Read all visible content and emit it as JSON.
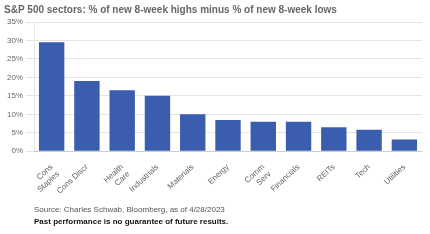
{
  "chart_data": {
    "type": "bar",
    "title": "S&P 500 sectors: % of new 8-week highs minus % of new 8-week lows",
    "categories": [
      "Cons\nStaples",
      "Cons Discr",
      "Health\nCare",
      "Industrials",
      "Materials",
      "Energy",
      "Comm\nServ",
      "Financials",
      "REITs",
      "Tech",
      "Utilities"
    ],
    "values": [
      29.5,
      19.0,
      16.5,
      15.0,
      10.0,
      8.5,
      8.0,
      8.0,
      6.5,
      5.8,
      3.2
    ],
    "color": "#3A5DAE",
    "ylim": [
      0,
      35
    ],
    "yticks": [
      {
        "value": 0,
        "label": "0%"
      },
      {
        "value": 5,
        "label": "5%"
      },
      {
        "value": 10,
        "label": "10%"
      },
      {
        "value": 15,
        "label": "15%"
      },
      {
        "value": 20,
        "label": "20%"
      },
      {
        "value": 25,
        "label": "25%"
      },
      {
        "value": 30,
        "label": "30%"
      },
      {
        "value": 35,
        "label": "35%"
      }
    ],
    "grid": true,
    "annotations": [
      "Source: Charles Schwab, Bloomberg, as of 4/28/2023",
      "Past performance is no guarantee of future results."
    ]
  }
}
